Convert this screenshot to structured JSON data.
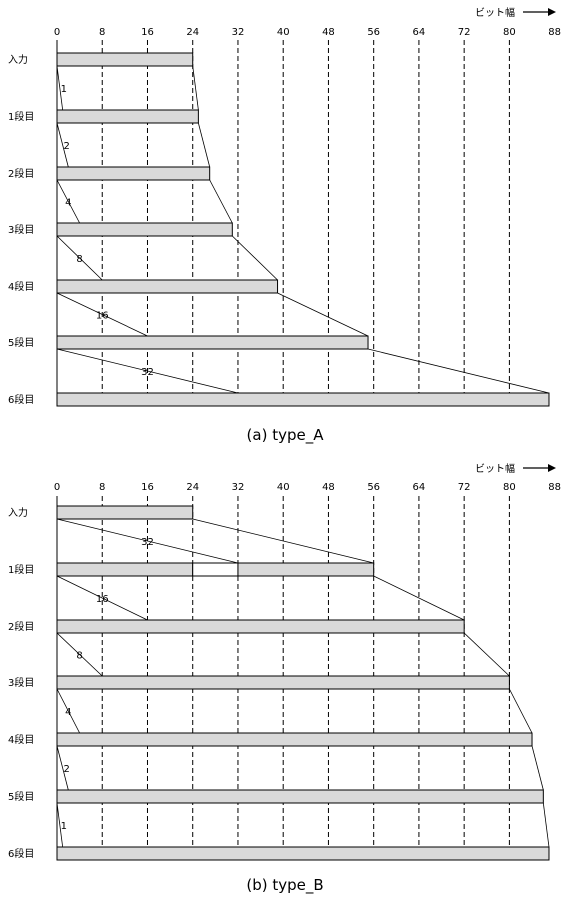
{
  "axis": {
    "unit_label": "ビット幅",
    "ticks": [
      0,
      8,
      16,
      24,
      32,
      40,
      48,
      56,
      64,
      72,
      80,
      88
    ]
  },
  "diagrams": [
    {
      "id": "a",
      "caption": "(a) type_A",
      "rows": [
        {
          "label": "入力",
          "width": 24
        },
        {
          "label": "1段目",
          "width": 25
        },
        {
          "label": "2段目",
          "width": 27
        },
        {
          "label": "3段目",
          "width": 31
        },
        {
          "label": "4段目",
          "width": 39
        },
        {
          "label": "5段目",
          "width": 55
        },
        {
          "label": "6段目",
          "width": 87
        }
      ],
      "shifts": [
        "1",
        "2",
        "4",
        "8",
        "16",
        "32"
      ]
    },
    {
      "id": "b",
      "caption": "(b) type_B",
      "rows": [
        {
          "label": "入力",
          "width": 24
        },
        {
          "label": "1段目",
          "width": 56
        },
        {
          "label": "2段目",
          "width": 72
        },
        {
          "label": "3段目",
          "width": 80
        },
        {
          "label": "4段目",
          "width": 84
        },
        {
          "label": "5段目",
          "width": 86
        },
        {
          "label": "6段目",
          "width": 87
        }
      ],
      "shifts": [
        "32",
        "16",
        "8",
        "4",
        "2",
        "1"
      ]
    }
  ]
}
